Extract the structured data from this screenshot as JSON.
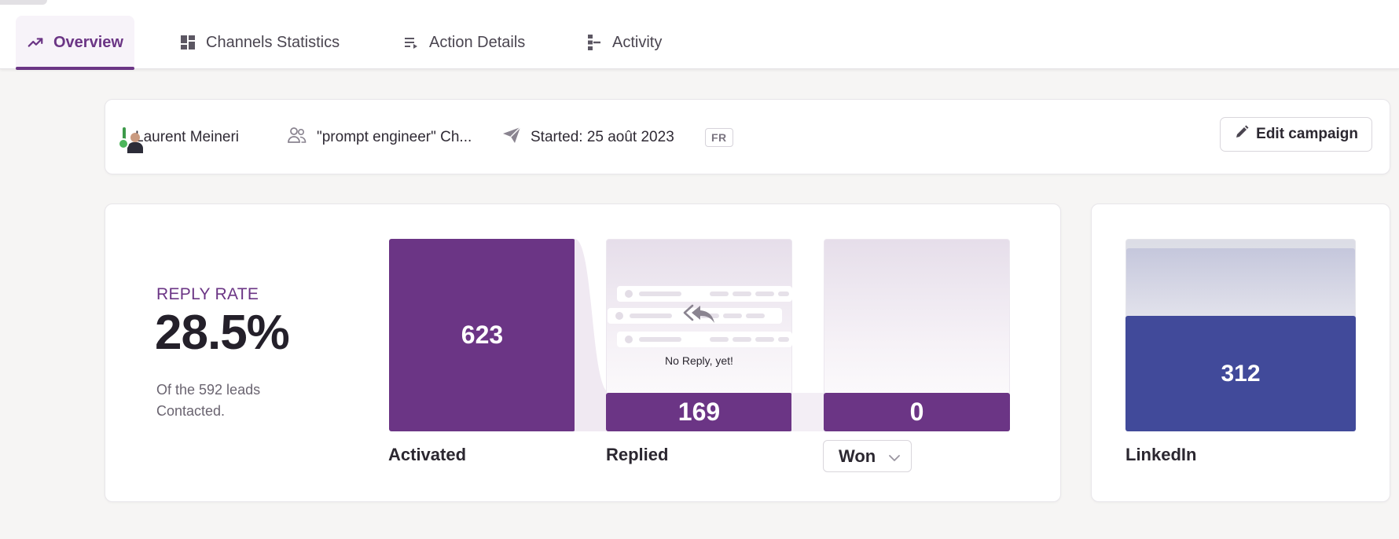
{
  "tabs": [
    {
      "label": "Overview",
      "icon": "trending-up-icon",
      "active": true
    },
    {
      "label": "Channels Statistics",
      "icon": "dashboard-icon",
      "active": false
    },
    {
      "label": "Action Details",
      "icon": "list-icon",
      "active": false
    },
    {
      "label": "Activity",
      "icon": "timeline-icon",
      "active": false
    }
  ],
  "campaign": {
    "owner": "Laurent Meineri",
    "audience": "\"prompt engineer\" Ch...",
    "started": "Started: 25 août 2023",
    "language": "FR",
    "edit_label": "Edit campaign"
  },
  "reply_rate": {
    "label": "REPLY RATE",
    "value": "28.5%",
    "subtitle": "Of the 592 leads Contacted."
  },
  "funnel": {
    "activated": {
      "label": "Activated",
      "value": "623",
      "fill": 1.0
    },
    "replied": {
      "label": "Replied",
      "value": "169",
      "fill": 0.2,
      "empty_text": "No Reply, yet!"
    },
    "won": {
      "label": "Won",
      "value": "0",
      "fill": 0.2
    }
  },
  "linkedin": {
    "label": "LinkedIn",
    "value": "312",
    "fill": 0.6
  },
  "colors": {
    "accent": "#6b3585",
    "linkedin": "#414a9a",
    "online": "#4cb55b"
  }
}
